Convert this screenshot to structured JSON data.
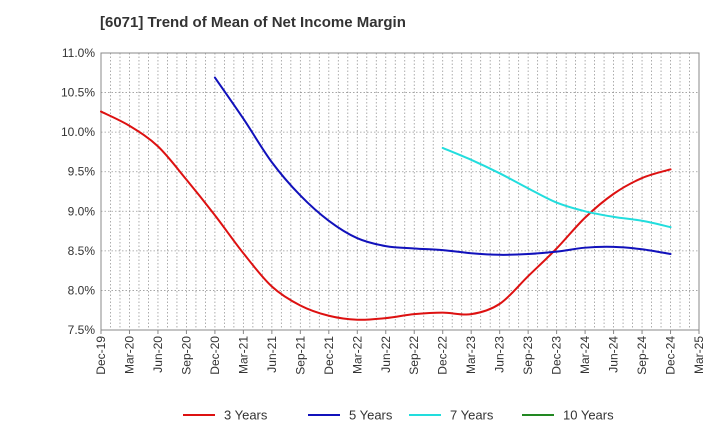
{
  "chart_data": {
    "type": "line",
    "title": "[6071]  Trend of Mean of Net Income Margin",
    "xlabel": "",
    "ylabel": "",
    "x_tick_labels": [
      "Dec-19",
      "Mar-20",
      "Jun-20",
      "Sep-20",
      "Dec-20",
      "Mar-21",
      "Jun-21",
      "Sep-21",
      "Dec-21",
      "Mar-22",
      "Jun-22",
      "Sep-22",
      "Dec-22",
      "Mar-23",
      "Jun-23",
      "Sep-23",
      "Dec-23",
      "Mar-24",
      "Jun-24",
      "Sep-24",
      "Dec-24",
      "Mar-25"
    ],
    "y_tick_labels": [
      "7.5%",
      "8.0%",
      "8.5%",
      "9.0%",
      "9.5%",
      "10.0%",
      "10.5%",
      "11.0%"
    ],
    "ylim": [
      7.5,
      11.0
    ],
    "grid": true,
    "legend_position": "bottom",
    "series": [
      {
        "name": "3 Years",
        "color": "#dd1111",
        "x": [
          "Dec-19",
          "Mar-20",
          "Jun-20",
          "Sep-20",
          "Dec-20",
          "Mar-21",
          "Jun-21",
          "Sep-21",
          "Dec-21",
          "Mar-22",
          "Jun-22",
          "Sep-22",
          "Dec-22",
          "Mar-23",
          "Jun-23",
          "Sep-23",
          "Dec-23",
          "Mar-24",
          "Jun-24",
          "Sep-24",
          "Dec-24"
        ],
        "values": [
          10.26,
          10.08,
          9.82,
          9.4,
          8.95,
          8.47,
          8.05,
          7.81,
          7.68,
          7.63,
          7.65,
          7.7,
          7.72,
          7.7,
          7.83,
          8.18,
          8.53,
          8.92,
          9.22,
          9.42,
          9.53
        ]
      },
      {
        "name": "5 Years",
        "color": "#1111bb",
        "x": [
          "Dec-20",
          "Mar-21",
          "Jun-21",
          "Sep-21",
          "Dec-21",
          "Mar-22",
          "Jun-22",
          "Sep-22",
          "Dec-22",
          "Mar-23",
          "Jun-23",
          "Sep-23",
          "Dec-23",
          "Mar-24",
          "Jun-24",
          "Sep-24",
          "Dec-24"
        ],
        "values": [
          10.69,
          10.17,
          9.62,
          9.2,
          8.88,
          8.66,
          8.56,
          8.53,
          8.51,
          8.47,
          8.45,
          8.46,
          8.49,
          8.54,
          8.55,
          8.52,
          8.46
        ]
      },
      {
        "name": "7 Years",
        "color": "#22dddd",
        "x": [
          "Dec-22",
          "Mar-23",
          "Jun-23",
          "Sep-23",
          "Dec-23",
          "Mar-24",
          "Jun-24",
          "Sep-24",
          "Dec-24"
        ],
        "values": [
          9.8,
          9.65,
          9.48,
          9.29,
          9.11,
          9.0,
          8.93,
          8.88,
          8.8
        ]
      },
      {
        "name": "10 Years",
        "color": "#228822",
        "x": [],
        "values": []
      }
    ]
  }
}
